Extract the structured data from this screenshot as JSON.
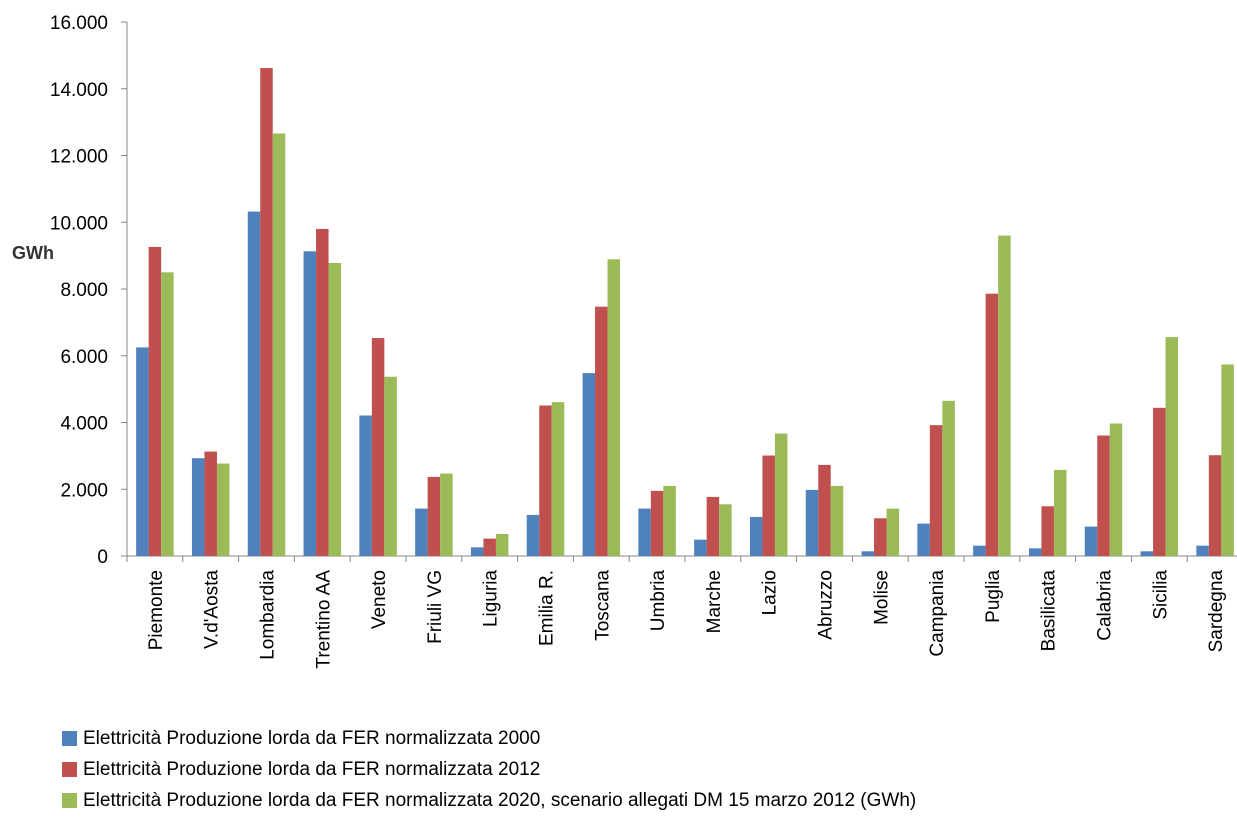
{
  "chart_data": {
    "type": "bar",
    "ylabel": "GWh",
    "ylim": [
      0,
      16000
    ],
    "yticks": [
      "0",
      "2.000",
      "4.000",
      "6.000",
      "8.000",
      "10.000",
      "12.000",
      "14.000",
      "16.000"
    ],
    "ytick_values": [
      0,
      2000,
      4000,
      6000,
      8000,
      10000,
      12000,
      14000,
      16000
    ],
    "categories": [
      "Piemonte",
      "V.d'Aosta",
      "Lombardia",
      "Trentino AA",
      "Veneto",
      "Friuli VG",
      "Liguria",
      "Emilia R.",
      "Toscana",
      "Umbria",
      "Marche",
      "Lazio",
      "Abruzzo",
      "Molise",
      "Campania",
      "Puglia",
      "Basilicata",
      "Calabria",
      "Sicilia",
      "Sardegna"
    ],
    "series": [
      {
        "name": "Elettricità Produzione lorda da FER normalizzata 2000",
        "color": "#4F81BD",
        "values": [
          6250,
          2930,
          10320,
          9130,
          4210,
          1420,
          260,
          1230,
          5480,
          1420,
          490,
          1170,
          1980,
          140,
          970,
          310,
          230,
          880,
          140,
          310
        ]
      },
      {
        "name": "Elettricità Produzione lorda da FER normalizzata 2012",
        "color": "#C0504D",
        "values": [
          9260,
          3130,
          14620,
          9800,
          6530,
          2370,
          520,
          4510,
          7470,
          1950,
          1770,
          3010,
          2730,
          1130,
          3920,
          7860,
          1490,
          3610,
          4440,
          3020
        ]
      },
      {
        "name": "Elettricità Produzione lorda da FER normalizzata 2020, scenario allegati DM 15 marzo 2012 (GWh)",
        "color": "#9BBB59",
        "values": [
          8500,
          2770,
          12660,
          8780,
          5370,
          2470,
          660,
          4610,
          8890,
          2100,
          1550,
          3670,
          2100,
          1420,
          4650,
          9600,
          2580,
          3970,
          6560,
          5740
        ]
      }
    ],
    "legend_position": "bottom-left",
    "grid": false
  }
}
